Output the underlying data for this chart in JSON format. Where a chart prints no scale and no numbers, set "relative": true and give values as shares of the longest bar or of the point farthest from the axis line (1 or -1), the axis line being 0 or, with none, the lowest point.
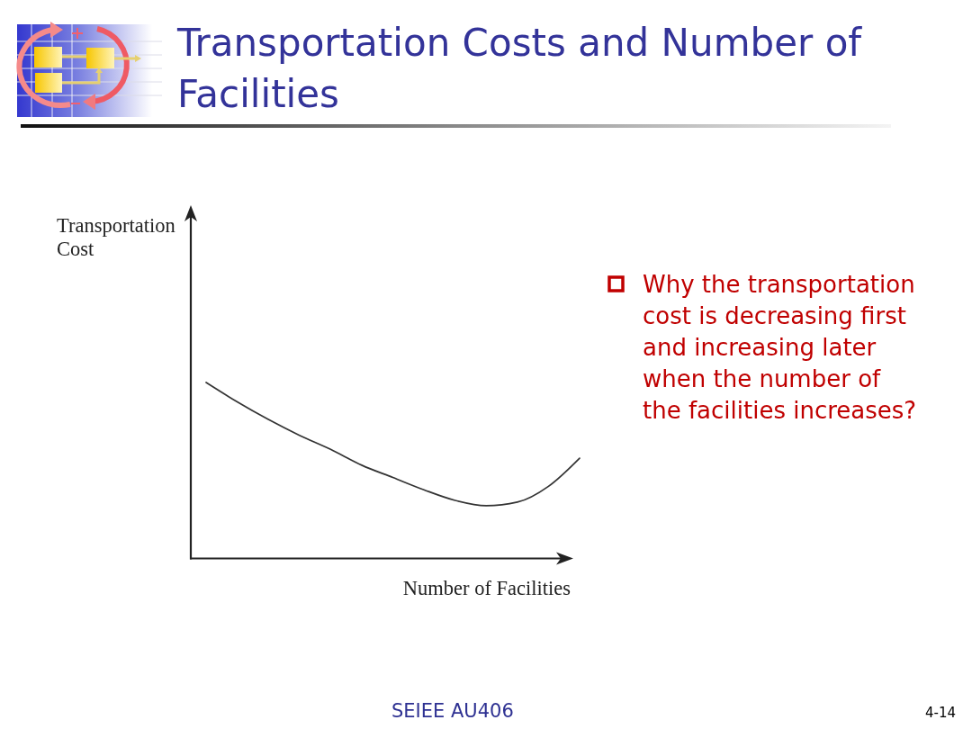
{
  "chart_data": {
    "type": "line",
    "title": "Transportation Costs and Number of Facilities",
    "xlabel": "Number of Facilities",
    "relative": true,
    "categories": [
      null,
      null,
      null,
      null,
      null,
      null,
      null,
      null,
      null,
      null,
      null,
      null,
      null
    ],
    "series": [
      {
        "color": "#333333",
        "values": [
          1,
          0.89,
          0.79,
          0.7,
          0.62,
          0.53,
          0.46,
          0.39,
          0.33,
          0.3,
          0.32,
          0.41,
          0.57
        ]
      }
    ],
    "annotations": [
      "Transportation Cost",
      "Why the transportation cost is decreasing first and increasing later when the number of the facilities increases?",
      "SEIEE AU406",
      "4-14"
    ]
  }
}
